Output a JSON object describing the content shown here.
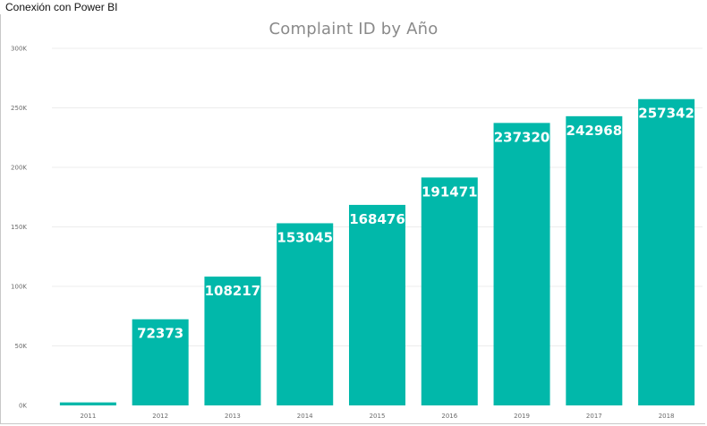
{
  "window": {
    "title": "Conexión con Power BI"
  },
  "chart_data": {
    "type": "bar",
    "title": "Complaint ID by Año",
    "xlabel": "",
    "ylabel": "",
    "categories": [
      "2011",
      "2012",
      "2013",
      "2014",
      "2015",
      "2016",
      "2019",
      "2017",
      "2018"
    ],
    "values": [
      2536,
      72373,
      108217,
      153045,
      168476,
      191471,
      237320,
      242968,
      257342
    ],
    "data_labels": [
      "",
      "72373",
      "108217",
      "153045",
      "168476",
      "191471",
      "237320",
      "242968",
      "257342"
    ],
    "ylim": [
      0,
      300000
    ],
    "y_ticks": [
      0,
      50000,
      100000,
      150000,
      200000,
      250000,
      300000
    ],
    "y_tick_labels": [
      "0K",
      "50K",
      "100K",
      "150K",
      "200K",
      "250K",
      "300K"
    ],
    "grid": true,
    "legend": "none",
    "bar_color": "#01B8AA",
    "gridline_color": "#ececec"
  }
}
